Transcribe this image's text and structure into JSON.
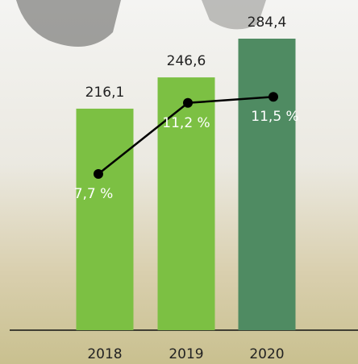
{
  "chart_data": {
    "type": "bar",
    "categories": [
      "2018",
      "2019",
      "2020"
    ],
    "values": [
      216.1,
      246.6,
      284.4
    ],
    "value_labels": [
      "216,1",
      "246,6",
      "284,4"
    ],
    "colors": [
      "#7cc043",
      "#7cc043",
      "#4f8b62"
    ],
    "line": {
      "values": [
        7.7,
        11.2,
        11.5
      ],
      "value_labels": [
        "7,7 %",
        "11,2 %",
        "11,5 %"
      ],
      "color": "#000000"
    }
  }
}
